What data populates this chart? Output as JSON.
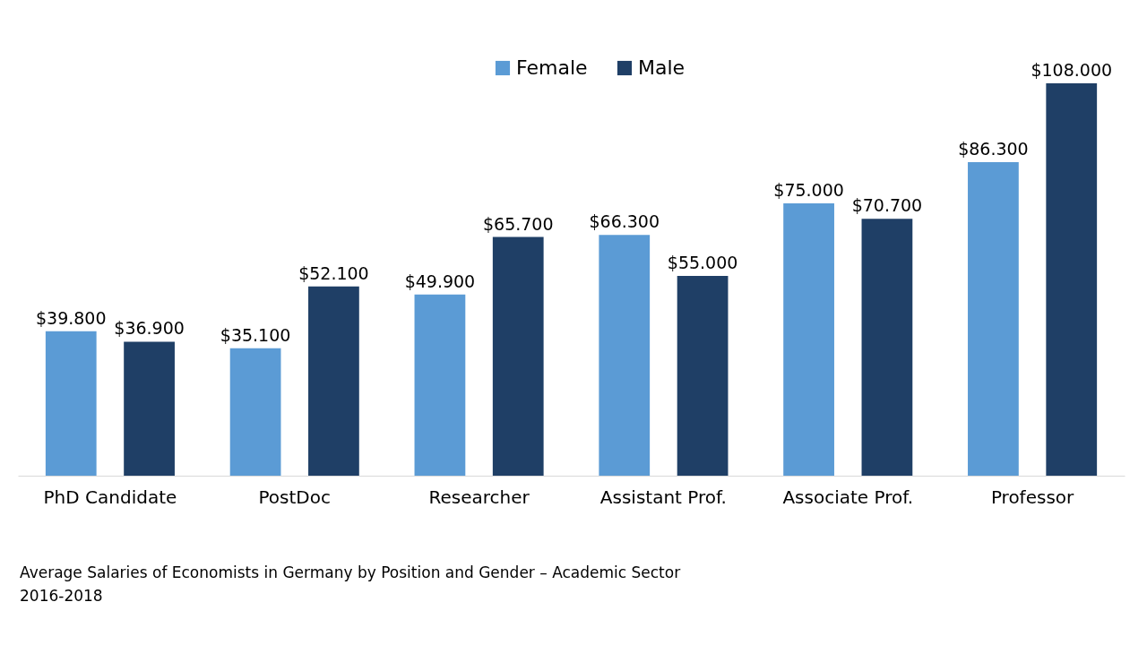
{
  "chart_data": {
    "type": "bar",
    "categories": [
      "PhD Candidate",
      "PostDoc",
      "Researcher",
      "Assistant Prof.",
      "Associate Prof.",
      "Professor"
    ],
    "series": [
      {
        "name": "Female",
        "color": "#5b9bd5",
        "values": [
          39800,
          35100,
          49900,
          66300,
          75000,
          86300
        ],
        "value_labels": [
          "$39.800",
          "$35.100",
          "$49.900",
          "$66.300",
          "$75.000",
          "$86.300"
        ]
      },
      {
        "name": "Male",
        "color": "#1f3f66",
        "values": [
          36900,
          52100,
          65700,
          55000,
          70700,
          108000
        ],
        "value_labels": [
          "$36.900",
          "$52.100",
          "$65.700",
          "$55.000",
          "$70.700",
          "$108.000"
        ]
      }
    ],
    "legend": "top",
    "grid": false,
    "annotations": [
      "Average Salaries of Economists in Germany by Position and Gender – Academic Sector",
      "2016-2018"
    ]
  }
}
